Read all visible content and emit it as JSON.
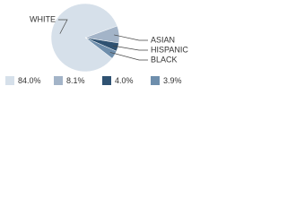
{
  "chart_data": {
    "type": "pie",
    "categories": [
      "WHITE",
      "ASIAN",
      "HISPANIC",
      "BLACK"
    ],
    "values": [
      84.0,
      8.1,
      4.0,
      3.9
    ],
    "value_labels": [
      "84.0%",
      "8.1%",
      "4.0%",
      "3.9%"
    ],
    "colors": [
      "#d6e0ea",
      "#a3b4c8",
      "#2f5272",
      "#6e8eac"
    ]
  }
}
